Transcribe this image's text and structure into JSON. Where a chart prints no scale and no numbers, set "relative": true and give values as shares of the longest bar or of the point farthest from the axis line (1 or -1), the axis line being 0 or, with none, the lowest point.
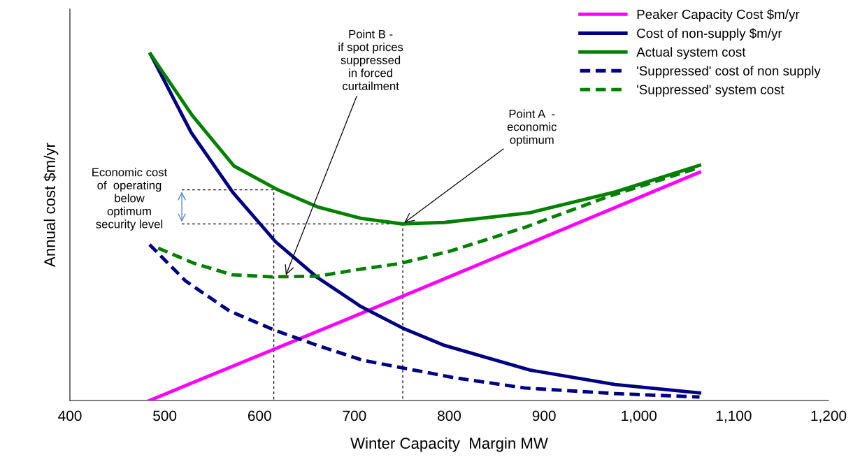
{
  "chart_data": {
    "type": "line",
    "relative": true,
    "xlabel": "Winter Capacity  Margin MW",
    "ylabel": "Annual cost $m/yr",
    "xlim": [
      400,
      1200
    ],
    "xticks": [
      400,
      500,
      600,
      700,
      800,
      900,
      {
        "value": 1000,
        "label": "1,000"
      },
      {
        "value": 1100,
        "label": "1,100"
      },
      {
        "value": 1200,
        "label": "1,200"
      }
    ],
    "grid": false,
    "legend": "top right",
    "tick_labels": "x",
    "marker": "none",
    "series": [
      {
        "name": "Peaker Capacity Cost $m/yr",
        "color": "#ff00ff",
        "line_style": "solid",
        "x": [
          484,
          751,
          1064
        ],
        "values": [
          0,
          0.301,
          0.659
        ]
      },
      {
        "name": "Cost of non-supply $m/yr",
        "color": "#000080",
        "line_style": "solid",
        "x": [
          485,
          528,
          572,
          617,
          661,
          707,
          751,
          795,
          885,
          975,
          1064
        ],
        "values": [
          1.0,
          0.773,
          0.6,
          0.458,
          0.355,
          0.271,
          0.209,
          0.159,
          0.088,
          0.046,
          0.022
        ]
      },
      {
        "name": "Actual system cost",
        "color": "#008000",
        "line_style": "solid",
        "x": [
          485,
          529,
          573,
          618,
          662,
          707,
          750,
          795,
          885,
          975,
          1064
        ],
        "values": [
          1.0,
          0.823,
          0.677,
          0.61,
          0.558,
          0.526,
          0.51,
          0.514,
          0.542,
          0.602,
          0.679
        ]
      },
      {
        "name": "'Suppressed' cost of non supply",
        "color": "#000080",
        "line_style": "dashed",
        "x": [
          484,
          522,
          568,
          616,
          661,
          709,
          751,
          805,
          880,
          975,
          1064
        ],
        "values": [
          0.45,
          0.345,
          0.259,
          0.203,
          0.159,
          0.116,
          0.094,
          0.066,
          0.036,
          0.02,
          0.01
        ]
      },
      {
        "name": "'Suppressed' system cost",
        "color": "#008000",
        "line_style": "dashed",
        "x": [
          493,
          531,
          571,
          613,
          661,
          704,
          749,
          802,
          880,
          967,
          1064
        ],
        "values": [
          0.44,
          0.396,
          0.363,
          0.357,
          0.359,
          0.378,
          0.396,
          0.432,
          0.5,
          0.588,
          0.673
        ]
      },
      {
        "color": "#000000",
        "line_style": "dotted",
        "x": [
          518,
          615,
          615
        ],
        "values": [
          0.608,
          0.608,
          0
        ]
      },
      {
        "color": "#000000",
        "line_style": "dotted",
        "x": [
          518,
          751,
          751
        ],
        "values": [
          0.51,
          0.51,
          0
        ]
      }
    ],
    "annotations": [
      {
        "text": "Point B -\nif spot prices\nsuppressed\nin forced\ncurtailment",
        "x": 627,
        "y": 0.357
      },
      {
        "text": "Point A  -\neconomic\noptimum",
        "x": 751,
        "y": 0.51
      },
      "Economic cost\nof  operating\nbelow\noptimum\nsecurity level"
    ]
  }
}
